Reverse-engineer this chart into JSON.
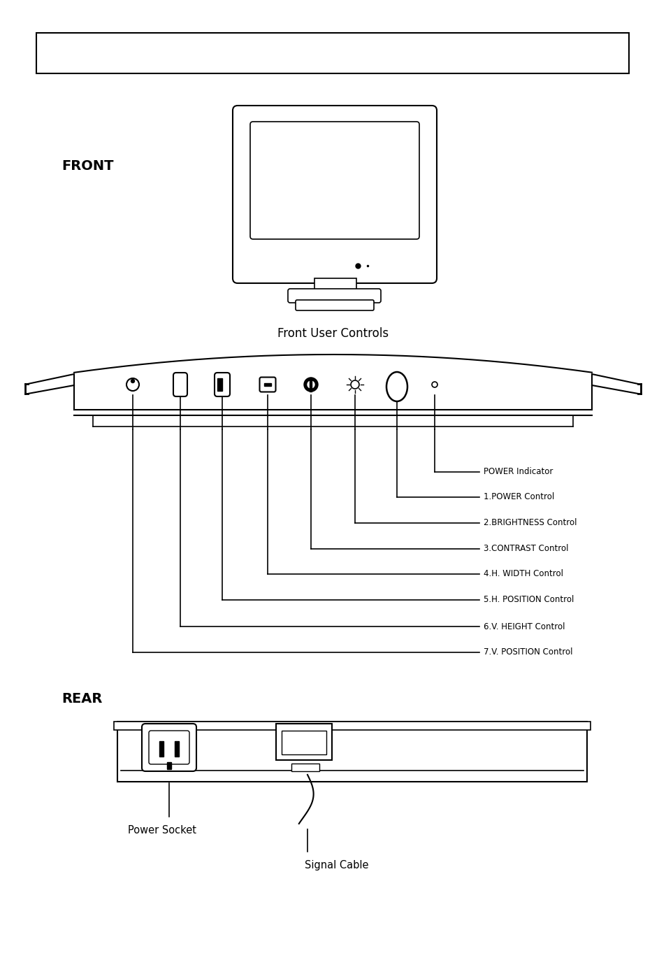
{
  "bg_color": "#ffffff",
  "front_label": "FRONT",
  "front_controls_label": "Front User Controls",
  "rear_label": "REAR",
  "control_labels": [
    "POWER Indicator",
    "1.POWER Control",
    "2.BRIGHTNESS Control",
    "3.CONTRAST Control",
    "4.H. WIDTH Control",
    "5.H. POSITION Control",
    "6.V. HEIGHT Control",
    "7.V. POSITION Control"
  ],
  "power_socket_label": "Power Socket",
  "signal_cable_label": "Signal Cable",
  "lc": "#000000"
}
